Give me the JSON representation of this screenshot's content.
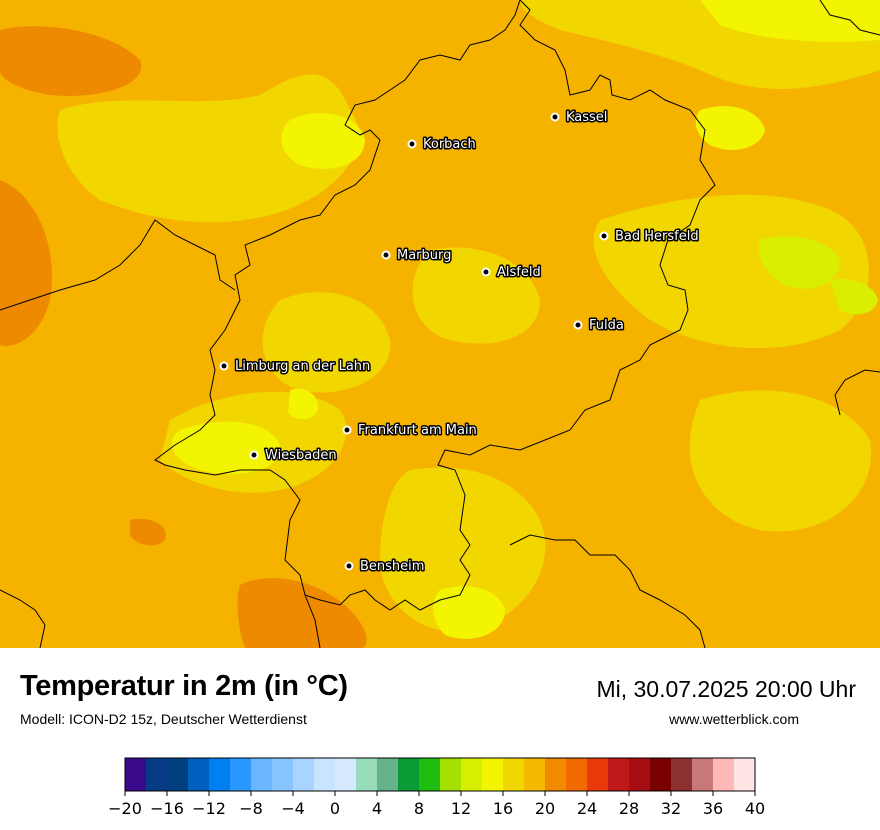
{
  "map": {
    "colors": {
      "orange": "#f5b300",
      "deep_orange": "#ee8a00",
      "yellow": "#f2d600",
      "bright_yellow": "#f3f500",
      "lime": "#d9ee00",
      "border": "#000000"
    },
    "cities": [
      {
        "name": "Kassel"
      },
      {
        "name": "Korbach"
      },
      {
        "name": "Bad Hersfeld"
      },
      {
        "name": "Marburg"
      },
      {
        "name": "Alsfeld"
      },
      {
        "name": "Fulda"
      },
      {
        "name": "Limburg an der Lahn"
      },
      {
        "name": "Frankfurt am Main"
      },
      {
        "name": "Wiesbaden"
      },
      {
        "name": "Bensheim"
      }
    ]
  },
  "footer": {
    "title": "Temperatur in 2m (in °C)",
    "model": "Modell: ICON-D2 15z, Deutscher Wetterdienst",
    "datetime": "Mi, 30.07.2025 20:00 Uhr",
    "website": "www.wetterblick.com"
  },
  "colorbar": {
    "min": -20,
    "max": 40,
    "step": 2,
    "tick_labels": [
      "−20",
      "−16",
      "−12",
      "−8",
      "−4",
      "0",
      "4",
      "8",
      "12",
      "16",
      "20",
      "24",
      "28",
      "32",
      "36",
      "40"
    ],
    "colors": [
      "#3a0a8c",
      "#063a84",
      "#003f7f",
      "#0060c0",
      "#0080f0",
      "#2a98ff",
      "#6cb6ff",
      "#88c4ff",
      "#a8d4ff",
      "#c8e4ff",
      "#d6eaff",
      "#98dcbc",
      "#66b28a",
      "#0a9a36",
      "#1ebe10",
      "#a4e000",
      "#d6ee00",
      "#f3f500",
      "#f2d600",
      "#f5b900",
      "#f28a00",
      "#f06a00",
      "#e83a0a",
      "#c01818",
      "#a60e12",
      "#7a0000",
      "#8c3030",
      "#c87878",
      "#ffb8b8",
      "#ffe4e4"
    ]
  }
}
